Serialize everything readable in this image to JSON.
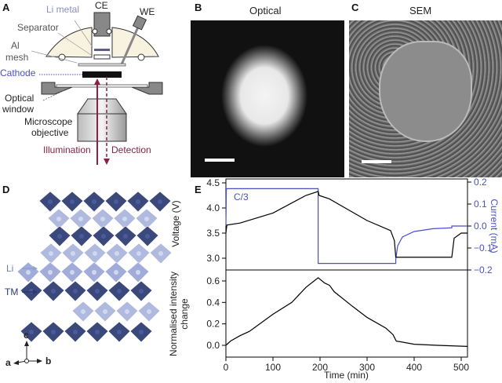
{
  "panels": {
    "a": "A",
    "b": "B",
    "c": "C",
    "d": "D",
    "e": "E"
  },
  "panelA": {
    "li_metal": "Li metal",
    "ce": "CE",
    "we": "WE",
    "separator": "Separator",
    "al": "Al",
    "mesh": "mesh",
    "cathode": "Cathode",
    "optical": "Optical",
    "window": "window",
    "microscope": "Microscope",
    "objective": "objective",
    "illumination": "Illumination",
    "detection": "Detection"
  },
  "panelB": {
    "title": "Optical"
  },
  "panelC": {
    "title": "SEM"
  },
  "panelD": {
    "li": "Li",
    "tm": "TM",
    "axis_c": "c",
    "axis_a": "a",
    "axis_b": "b"
  },
  "colors": {
    "blue": "#4a4fc4",
    "maroon": "#8a2044",
    "lattice_dark": "#2a3a6e",
    "lattice_light": "#aab4dc"
  },
  "chart_data": [
    {
      "type": "line",
      "title": "",
      "annotation": "C/3",
      "xlabel": "Time (min)",
      "ylabel": "Voltage (V)",
      "y2label": "Current (mA)",
      "xlim": [
        0,
        513
      ],
      "ylim": [
        2.78,
        4.5
      ],
      "y2lim": [
        -0.2,
        0.2
      ],
      "yticks": [
        "3.0",
        "3.5",
        "4.0",
        "4.5"
      ],
      "y2ticks": [
        "0.2",
        "0.1",
        "0.0",
        "-0.1",
        "-0.2"
      ],
      "series": [
        {
          "name": "Voltage",
          "axis": "left",
          "x": [
            0,
            2,
            30,
            100,
            170,
            196,
            198,
            220,
            300,
            350,
            358,
            361,
            480,
            485,
            500,
            513
          ],
          "y": [
            3.5,
            3.66,
            3.7,
            3.9,
            4.25,
            4.33,
            4.25,
            4.18,
            3.75,
            3.55,
            3.35,
            3.02,
            3.02,
            3.4,
            3.5,
            3.5
          ]
        },
        {
          "name": "Current",
          "axis": "right",
          "x": [
            0,
            1,
            196,
            196,
            361,
            361,
            365,
            375,
            400,
            440,
            480,
            480,
            513
          ],
          "y": [
            0,
            0.17,
            0.17,
            -0.17,
            -0.17,
            -0.15,
            -0.09,
            -0.05,
            -0.025,
            -0.012,
            -0.008,
            0,
            0
          ]
        }
      ]
    },
    {
      "type": "line",
      "xlabel": "Time (min)",
      "ylabel": "Normalised intensity change",
      "xlim": [
        0,
        513
      ],
      "ylim": [
        -0.11,
        0.75
      ],
      "xticks": [
        "0",
        "100",
        "200",
        "300",
        "400",
        "500"
      ],
      "yticks": [
        "0.0",
        "0.2",
        "0.4",
        "0.6"
      ],
      "series": [
        {
          "name": "Intensity",
          "x": [
            0,
            10,
            30,
            50,
            100,
            140,
            170,
            196,
            210,
            220,
            230,
            270,
            300,
            340,
            355,
            362,
            400,
            450,
            513
          ],
          "y": [
            0,
            0.04,
            0.09,
            0.13,
            0.29,
            0.4,
            0.54,
            0.63,
            0.58,
            0.56,
            0.5,
            0.36,
            0.26,
            0.16,
            0.1,
            0.04,
            0.01,
            0,
            -0.01
          ]
        }
      ]
    }
  ]
}
